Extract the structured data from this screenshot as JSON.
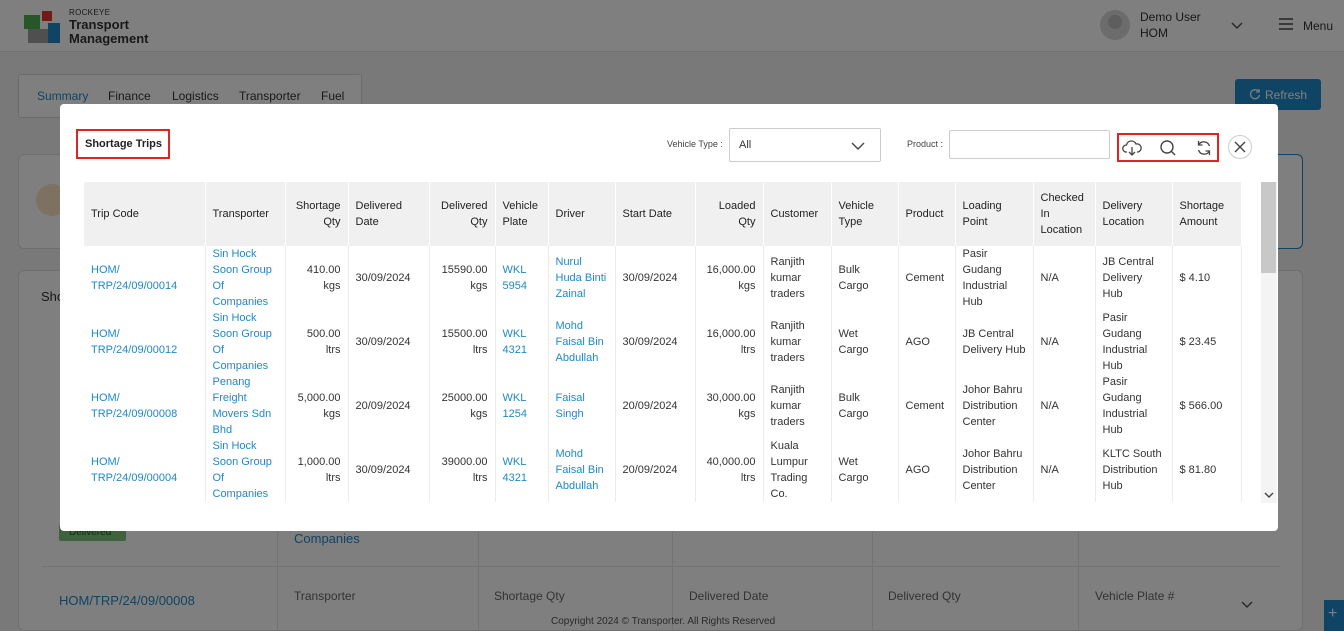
{
  "app": {
    "brand_small": "ROCKEYE",
    "brand_line1": "Transport",
    "brand_line2": "Management",
    "user_name": "Demo User",
    "user_role": "HOM",
    "menu_label": "Menu"
  },
  "tabs": [
    "Summary",
    "Finance",
    "Logistics",
    "Transporter",
    "Fuel"
  ],
  "refresh_label": "Refresh",
  "background": {
    "section_title": "Sho",
    "badge": "Delivered",
    "companies_text": "Companies",
    "row_trip": "HOM/TRP/24/09/00008",
    "row_headers": [
      "Transporter",
      "Shortage Qty",
      "Delivered Date",
      "Delivered Qty",
      "Vehicle Plate #"
    ],
    "copyright": "Copyright 2024 © Transporter. All Rights Reserved"
  },
  "modal": {
    "title": "Shortage Trips",
    "vehicle_type_label": "Vehicle Type :",
    "vehicle_type_value": "All",
    "product_label": "Product :",
    "product_value": "",
    "product_placeholder": ""
  },
  "table": {
    "columns": [
      "Trip Code",
      "Transporter",
      "Shortage Qty",
      "Delivered Date",
      "Delivered Qty",
      "Vehicle Plate",
      "Driver",
      "Start Date",
      "Loaded Qty",
      "Customer",
      "Vehicle Type",
      "Product",
      "Loading Point",
      "Checked In Location",
      "Delivery Location",
      "Shortage Amount"
    ],
    "rows": [
      [
        "HOM/ TRP/24/09/00014",
        "Sin Hock Soon Group Of Companies",
        "410.00 kgs",
        "30/09/2024",
        "15590.00 kgs",
        "WKL 5954",
        "Nurul Huda Binti Zainal",
        "30/09/2024",
        "16,000.00 kgs",
        "Ranjith kumar traders",
        "Bulk Cargo",
        "Cement",
        "Pasir Gudang Industrial Hub",
        "N/A",
        "JB Central Delivery Hub",
        "$ 4.10"
      ],
      [
        "HOM/ TRP/24/09/00012",
        "Sin Hock Soon Group Of Companies",
        "500.00 ltrs",
        "30/09/2024",
        "15500.00 ltrs",
        "WKL 4321",
        "Mohd Faisal Bin Abdullah",
        "30/09/2024",
        "16,000.00 ltrs",
        "Ranjith kumar traders",
        "Wet Cargo",
        "AGO",
        "JB Central Delivery Hub",
        "N/A",
        "Pasir Gudang Industrial Hub",
        "$ 23.45"
      ],
      [
        "HOM/ TRP/24/09/00008",
        "Penang Freight Movers Sdn Bhd",
        "5,000.00 kgs",
        "20/09/2024",
        "25000.00 kgs",
        "WKL 1254",
        "Faisal Singh",
        "20/09/2024",
        "30,000.00 kgs",
        "Ranjith kumar traders",
        "Bulk Cargo",
        "Cement",
        "Johor Bahru Distribution Center",
        "N/A",
        "Pasir Gudang Industrial Hub",
        "$ 566.00"
      ],
      [
        "HOM/ TRP/24/09/00004",
        "Sin Hock Soon Group Of Companies",
        "1,000.00 ltrs",
        "30/09/2024",
        "39000.00 ltrs",
        "WKL 4321",
        "Mohd Faisal Bin Abdullah",
        "20/09/2024",
        "40,000.00 ltrs",
        "Kuala Lumpur Trading Co.",
        "Wet Cargo",
        "AGO",
        "Johor Bahru Distribution Center",
        "N/A",
        "KLTC South Distribution Hub",
        "$ 81.80"
      ]
    ]
  },
  "colors": {
    "accent": "#1e88c9",
    "highlight": "#e02424",
    "badge": "#7cc576"
  },
  "icons": [
    "cloud-download-icon",
    "search-icon",
    "refresh-icon",
    "close-icon",
    "chevron-down-icon",
    "menu-icon"
  ]
}
